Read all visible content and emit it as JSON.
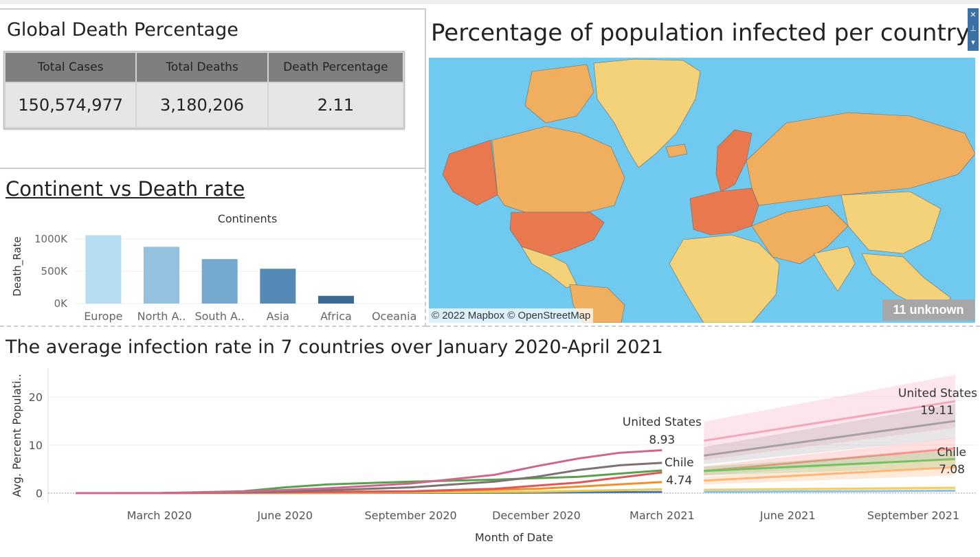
{
  "kpi_panel": {
    "title": "Global Death Percentage",
    "headers": [
      "Total Cases",
      "Total Deaths",
      "Death Percentage"
    ],
    "values": [
      "150,574,977",
      "3,180,206",
      "2.11"
    ],
    "header_color": "#7f7f7f",
    "cell_color": "#e6e6e6"
  },
  "continent_panel": {
    "title": "Continent vs Death rate"
  },
  "map_panel": {
    "title": "Percentage of population infected per country",
    "attribution": "© 2022 Mapbox © OpenStreetMap",
    "unknown_badge": "11 unknown",
    "ocean_color": "#70c9ef",
    "controls": [
      "close-icon",
      "pin-icon",
      "chevron-down-icon"
    ]
  },
  "line_panel": {
    "title": "The average infection rate in 7 countries over January 2020-April 2021"
  },
  "chart_data": [
    {
      "type": "bar",
      "title": "Continents",
      "xlabel": "",
      "ylabel": "Death_Rate",
      "categories": [
        "Europe",
        "North A..",
        "South A..",
        "Asia",
        "Africa",
        "Oceania"
      ],
      "values": [
        1060000,
        880000,
        690000,
        540000,
        120000,
        0
      ],
      "ylim": [
        0,
        1150000
      ],
      "yticks": [
        0,
        500000,
        1000000
      ],
      "ytick_labels": [
        "0K",
        "500K",
        "1000K"
      ],
      "colors": [
        "#b6ddf1",
        "#94c1e0",
        "#74a8cf",
        "#5589b6",
        "#3a6996",
        "#2d5c8a"
      ],
      "grid": true
    },
    {
      "type": "line",
      "xlabel": "Month of Date",
      "ylabel": "Avg. Percent Populati..",
      "ylim": [
        -2,
        26
      ],
      "yticks": [
        0,
        10,
        20
      ],
      "x_ticks": [
        "March 2020",
        "June 2020",
        "September 2020",
        "December 2020",
        "March 2021",
        "June 2021",
        "September 2021"
      ],
      "x_range_months": [
        "2020-01",
        "2021-10"
      ],
      "series": [
        {
          "name": "United States",
          "color": "#d0668f",
          "x": [
            "2020-01",
            "2020-03",
            "2020-05",
            "2020-07",
            "2020-09",
            "2020-11",
            "2020-12",
            "2021-01",
            "2021-02",
            "2021-03"
          ],
          "y": [
            0,
            0,
            0.3,
            1.0,
            2.0,
            3.8,
            5.6,
            7.2,
            8.4,
            8.93
          ]
        },
        {
          "name": "",
          "color": "#7d7171",
          "x": [
            "2020-01",
            "2020-03",
            "2020-05",
            "2020-07",
            "2020-09",
            "2020-11",
            "2020-12",
            "2021-01",
            "2021-02",
            "2021-03"
          ],
          "y": [
            0,
            0,
            0.2,
            0.6,
            1.2,
            2.4,
            3.4,
            4.8,
            5.8,
            6.3
          ]
        },
        {
          "name": "Chile",
          "color": "#59a14f",
          "x": [
            "2020-01",
            "2020-03",
            "2020-05",
            "2020-06",
            "2020-07",
            "2020-09",
            "2020-11",
            "2021-01",
            "2021-03"
          ],
          "y": [
            0,
            0,
            0.4,
            1.2,
            1.8,
            2.4,
            2.8,
            3.4,
            4.74
          ]
        },
        {
          "name": "",
          "color": "#e15759",
          "x": [
            "2020-01",
            "2020-03",
            "2020-06",
            "2020-09",
            "2020-11",
            "2021-01",
            "2021-03"
          ],
          "y": [
            0,
            0,
            0.2,
            0.4,
            0.9,
            2.2,
            4.3
          ]
        },
        {
          "name": "",
          "color": "#f28e2b",
          "x": [
            "2020-01",
            "2020-03",
            "2020-06",
            "2020-09",
            "2020-12",
            "2021-03"
          ],
          "y": [
            0,
            0,
            0.1,
            0.3,
            0.9,
            2.3
          ]
        },
        {
          "name": "",
          "color": "#edc948",
          "x": [
            "2020-01",
            "2020-06",
            "2020-12",
            "2021-03"
          ],
          "y": [
            0,
            0.05,
            0.3,
            0.8
          ]
        },
        {
          "name": "",
          "color": "#4e79a7",
          "x": [
            "2020-01",
            "2020-06",
            "2020-12",
            "2021-03"
          ],
          "y": [
            0,
            0.02,
            0.1,
            0.25
          ]
        }
      ],
      "forecast": [
        {
          "name": "United States",
          "color": "#f4a7b9",
          "start": [
            "2021-04",
            10.9
          ],
          "end": [
            "2021-10",
            19.11
          ],
          "band": [
            4.0,
            5.5
          ]
        },
        {
          "name": "",
          "color": "#a8a0a0",
          "start": [
            "2021-04",
            7.8
          ],
          "end": [
            "2021-10",
            15.0
          ],
          "band": [
            1.8,
            3.6
          ]
        },
        {
          "name": "",
          "color": "#ff8f8f",
          "start": [
            "2021-04",
            4.6
          ],
          "end": [
            "2021-10",
            9.3
          ],
          "band": [
            1.0,
            2.2
          ]
        },
        {
          "name": "Chile",
          "color": "#72c25f",
          "start": [
            "2021-04",
            4.6
          ],
          "end": [
            "2021-10",
            7.08
          ],
          "band": [
            0.9,
            1.8
          ]
        },
        {
          "name": "",
          "color": "#ffb577",
          "start": [
            "2021-04",
            2.6
          ],
          "end": [
            "2021-10",
            5.4
          ],
          "band": [
            0.8,
            1.7
          ]
        },
        {
          "name": "",
          "color": "#f1ce63",
          "start": [
            "2021-04",
            0.7
          ],
          "end": [
            "2021-10",
            1.1
          ],
          "band": [
            0.2,
            0.3
          ]
        },
        {
          "name": "",
          "color": "#8cc2e6",
          "start": [
            "2021-04",
            0.25
          ],
          "end": [
            "2021-10",
            0.5
          ],
          "band": [
            0.1,
            0.2
          ]
        }
      ],
      "annotations": [
        {
          "label": "United States",
          "value": "8.93"
        },
        {
          "label": "Chile",
          "value": "4.74"
        },
        {
          "label": "United States",
          "value": "19.11"
        },
        {
          "label": "Chile",
          "value": "7.08"
        }
      ],
      "grid": true
    }
  ]
}
